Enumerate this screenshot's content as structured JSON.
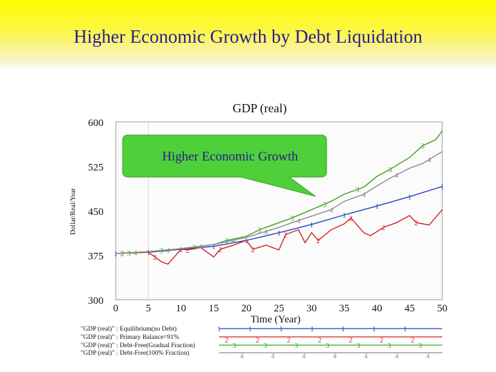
{
  "slide": {
    "title": "Higher Economic Growth by Debt Liquidation"
  },
  "colors": {
    "title_text": "#2a1b8a",
    "line1": "#2040c0",
    "line2": "#d42020",
    "line3": "#3aa020",
    "line4": "#8a8a8a",
    "callout": "#4fcf3a"
  },
  "chart_data": {
    "type": "line",
    "title": "GDP (real)",
    "xlabel": "Time (Year)",
    "ylabel": "Dollar/Real/Year",
    "xlim": [
      0,
      50
    ],
    "ylim": [
      300,
      600
    ],
    "xticks": [
      0,
      5,
      10,
      15,
      20,
      25,
      30,
      35,
      40,
      45,
      50
    ],
    "yticks": [
      300,
      375,
      450,
      525,
      600
    ],
    "annotation": "Higher Economic Growth",
    "series": [
      {
        "name": "\"GDP (real)\" : Equilibrium(no Debt)",
        "marker": "1",
        "x": [
          0,
          5,
          10,
          15,
          20,
          25,
          30,
          35,
          40,
          45,
          50
        ],
        "y": [
          378,
          380,
          385,
          390,
          400,
          413,
          427,
          443,
          458,
          474,
          491
        ]
      },
      {
        "name": "\"GDP (real)\" : Primary Balance=91%",
        "marker": "2",
        "x": [
          0,
          5,
          6,
          7,
          8,
          10,
          11,
          13,
          15,
          16,
          18,
          20,
          21,
          23,
          25,
          26,
          28,
          29,
          30,
          31,
          33,
          35,
          36,
          38,
          39,
          41,
          43,
          45,
          46,
          48,
          50
        ],
        "y": [
          378,
          380,
          372,
          364,
          360,
          385,
          384,
          388,
          372,
          385,
          392,
          400,
          385,
          392,
          384,
          410,
          418,
          396,
          413,
          400,
          418,
          428,
          438,
          413,
          408,
          422,
          430,
          442,
          430,
          426,
          452
        ]
      },
      {
        "name": "\"GDP (real)\" : Debt-Free(Gradual Fraction)",
        "marker": "3",
        "x": [
          0,
          5,
          10,
          15,
          17,
          20,
          22,
          25,
          27,
          30,
          33,
          35,
          38,
          40,
          42,
          45,
          47,
          49,
          50
        ],
        "y": [
          378,
          381,
          386,
          393,
          400,
          407,
          418,
          430,
          438,
          452,
          466,
          478,
          490,
          508,
          520,
          540,
          560,
          570,
          585
        ]
      },
      {
        "name": "\"GDP (real)\" : Debt-Free(100% Fraction)",
        "marker": "4",
        "x": [
          0,
          5,
          10,
          15,
          17,
          20,
          22,
          25,
          27,
          30,
          33,
          35,
          38,
          40,
          42,
          45,
          47,
          50
        ],
        "y": [
          378,
          381,
          386,
          393,
          398,
          405,
          412,
          422,
          430,
          441,
          452,
          466,
          478,
          492,
          505,
          522,
          530,
          550
        ]
      }
    ]
  }
}
